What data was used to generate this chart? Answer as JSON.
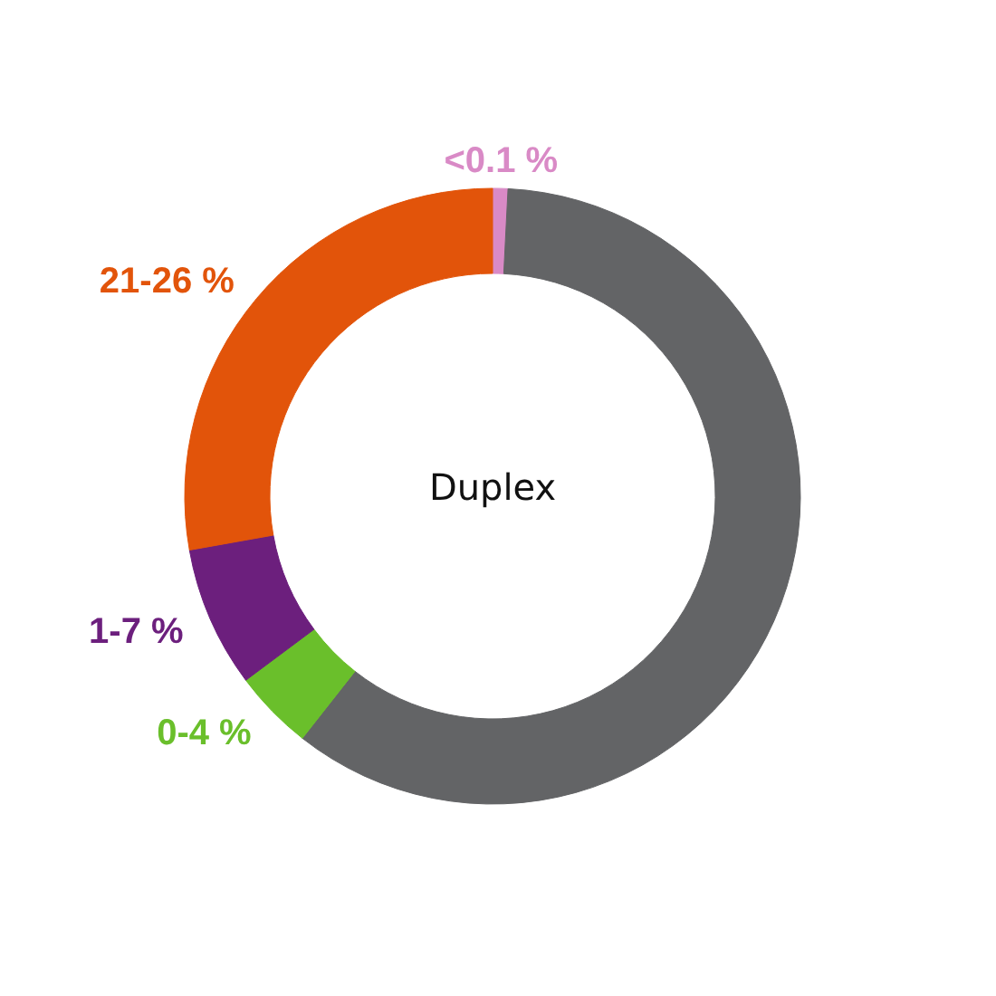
{
  "chart_data": {
    "type": "donut",
    "title": "Duplex",
    "categories": [
      "<0.1 %",
      null,
      "0-4 %",
      "1-7 %",
      "21-26 %"
    ],
    "values": [
      0.8,
      59.8,
      4.2,
      7.4,
      27.8
    ],
    "colors": [
      "#d98ac6",
      "#636466",
      "#6abf2b",
      "#6c1f7d",
      "#e2540a"
    ]
  }
}
